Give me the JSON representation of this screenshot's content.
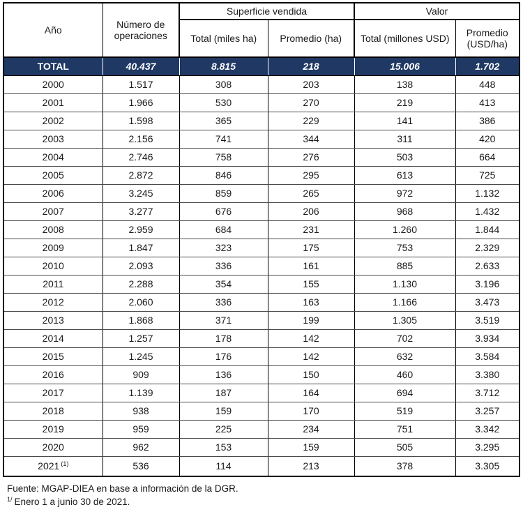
{
  "table": {
    "header": {
      "col_year": "Año",
      "col_operations": "Número de operaciones",
      "group_surface": "Superficie vendida",
      "group_value": "Valor",
      "col_surface_total": "Total (miles ha)",
      "col_surface_avg": "Promedio (ha)",
      "col_value_total": "Total (millones USD)",
      "col_value_avg": "Promedio (USD/ha)"
    },
    "total_row": {
      "label": "TOTAL",
      "operations": "40.437",
      "surface_total": "8.815",
      "surface_avg": "218",
      "value_total": "15.006",
      "value_avg": "1.702"
    },
    "rows": [
      {
        "year": "2000",
        "operations": "1.517",
        "surface_total": "308",
        "surface_avg": "203",
        "value_total": "138",
        "value_avg": "448"
      },
      {
        "year": "2001",
        "operations": "1.966",
        "surface_total": "530",
        "surface_avg": "270",
        "value_total": "219",
        "value_avg": "413"
      },
      {
        "year": "2002",
        "operations": "1.598",
        "surface_total": "365",
        "surface_avg": "229",
        "value_total": "141",
        "value_avg": "386"
      },
      {
        "year": "2003",
        "operations": "2.156",
        "surface_total": "741",
        "surface_avg": "344",
        "value_total": "311",
        "value_avg": "420"
      },
      {
        "year": "2004",
        "operations": "2.746",
        "surface_total": "758",
        "surface_avg": "276",
        "value_total": "503",
        "value_avg": "664"
      },
      {
        "year": "2005",
        "operations": "2.872",
        "surface_total": "846",
        "surface_avg": "295",
        "value_total": "613",
        "value_avg": "725"
      },
      {
        "year": "2006",
        "operations": "3.245",
        "surface_total": "859",
        "surface_avg": "265",
        "value_total": "972",
        "value_avg": "1.132"
      },
      {
        "year": "2007",
        "operations": "3.277",
        "surface_total": "676",
        "surface_avg": "206",
        "value_total": "968",
        "value_avg": "1.432"
      },
      {
        "year": "2008",
        "operations": "2.959",
        "surface_total": "684",
        "surface_avg": "231",
        "value_total": "1.260",
        "value_avg": "1.844"
      },
      {
        "year": "2009",
        "operations": "1.847",
        "surface_total": "323",
        "surface_avg": "175",
        "value_total": "753",
        "value_avg": "2.329"
      },
      {
        "year": "2010",
        "operations": "2.093",
        "surface_total": "336",
        "surface_avg": "161",
        "value_total": "885",
        "value_avg": "2.633"
      },
      {
        "year": "2011",
        "operations": "2.288",
        "surface_total": "354",
        "surface_avg": "155",
        "value_total": "1.130",
        "value_avg": "3.196"
      },
      {
        "year": "2012",
        "operations": "2.060",
        "surface_total": "336",
        "surface_avg": "163",
        "value_total": "1.166",
        "value_avg": "3.473"
      },
      {
        "year": "2013",
        "operations": "1.868",
        "surface_total": "371",
        "surface_avg": "199",
        "value_total": "1.305",
        "value_avg": "3.519"
      },
      {
        "year": "2014",
        "operations": "1.257",
        "surface_total": "178",
        "surface_avg": "142",
        "value_total": "702",
        "value_avg": "3.934"
      },
      {
        "year": "2015",
        "operations": "1.245",
        "surface_total": "176",
        "surface_avg": "142",
        "value_total": "632",
        "value_avg": "3.584"
      },
      {
        "year": "2016",
        "operations": "909",
        "surface_total": "136",
        "surface_avg": "150",
        "value_total": "460",
        "value_avg": "3.380"
      },
      {
        "year": "2017",
        "operations": "1.139",
        "surface_total": "187",
        "surface_avg": "164",
        "value_total": "694",
        "value_avg": "3.712"
      },
      {
        "year": "2018",
        "operations": "938",
        "surface_total": "159",
        "surface_avg": "170",
        "value_total": "519",
        "value_avg": "3.257"
      },
      {
        "year": "2019",
        "operations": "959",
        "surface_total": "225",
        "surface_avg": "234",
        "value_total": "751",
        "value_avg": "3.342"
      },
      {
        "year": "2020",
        "operations": "962",
        "surface_total": "153",
        "surface_avg": "159",
        "value_total": "505",
        "value_avg": "3.295"
      },
      {
        "year": "2021",
        "year_sup": "(1)",
        "operations": "536",
        "surface_total": "114",
        "surface_avg": "213",
        "value_total": "378",
        "value_avg": "3.305"
      }
    ]
  },
  "footer": {
    "source": "Fuente: MGAP-DIEA en base a información de la DGR.",
    "note_marker": "1/",
    "note_text": "Enero 1 a junio 30 de 2021."
  },
  "colors": {
    "total_row_bg": "#1f3864",
    "total_row_text": "#ffffff",
    "border": "#000000"
  }
}
